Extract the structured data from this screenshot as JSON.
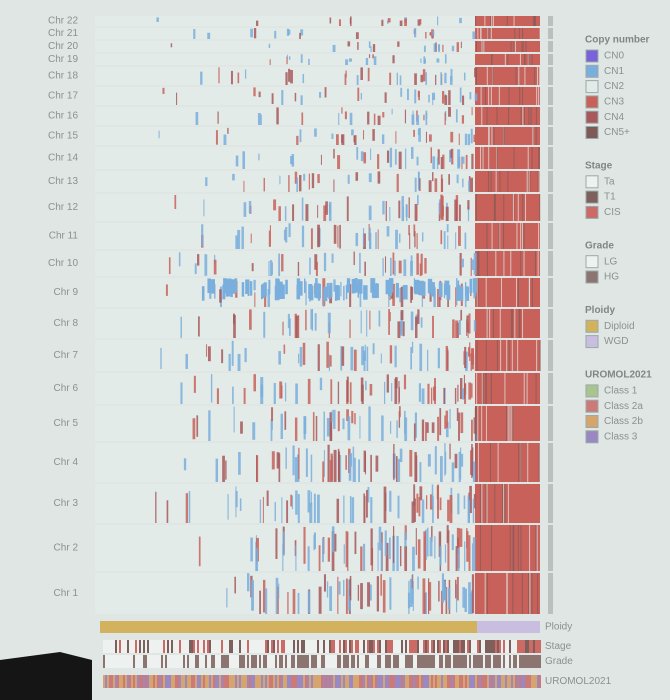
{
  "chromosomes": [
    "Chr 22",
    "Chr 21",
    "Chr 20",
    "Chr 19",
    "Chr 18",
    "Chr 17",
    "Chr 16",
    "Chr 15",
    "Chr 14",
    "Chr 13",
    "Chr 12",
    "Chr 11",
    "Chr 10",
    "Chr 9",
    "Chr 8",
    "Chr 7",
    "Chr 6",
    "Chr 5",
    "Chr 4",
    "Chr 3",
    "Chr 2",
    "Chr 1"
  ],
  "legend": [
    {
      "title": "Copy number",
      "items": [
        {
          "label": "CN0",
          "color": "#7a63d8"
        },
        {
          "label": "CN1",
          "color": "#7aaedc"
        },
        {
          "label": "CN2",
          "color": "#e2ebe8"
        },
        {
          "label": "CN3",
          "color": "#c8615a"
        },
        {
          "label": "CN4",
          "color": "#a8585a"
        },
        {
          "label": "CN5+",
          "color": "#7d5a58"
        }
      ]
    },
    {
      "title": "Stage",
      "items": [
        {
          "label": "Ta",
          "color": "#edf2f0"
        },
        {
          "label": "T1",
          "color": "#7d5f5c"
        },
        {
          "label": "CIS",
          "color": "#cc6a66"
        }
      ]
    },
    {
      "title": "Grade",
      "items": [
        {
          "label": "LG",
          "color": "#edf2f0"
        },
        {
          "label": "HG",
          "color": "#8c7470"
        }
      ]
    },
    {
      "title": "Ploidy",
      "items": [
        {
          "label": "Diploid",
          "color": "#d2b25c"
        },
        {
          "label": "WGD",
          "color": "#c9bde0"
        }
      ]
    },
    {
      "title": "UROMOL2021",
      "items": [
        {
          "label": "Class 1",
          "color": "#a9c48e"
        },
        {
          "label": "Class 2a",
          "color": "#cc7a78"
        },
        {
          "label": "Class 2b",
          "color": "#d6a56e"
        },
        {
          "label": "Class 3",
          "color": "#9a88c2"
        }
      ]
    }
  ],
  "tracks": [
    "Ploidy",
    "Stage",
    "Grade",
    "UROMOL2021"
  ]
}
